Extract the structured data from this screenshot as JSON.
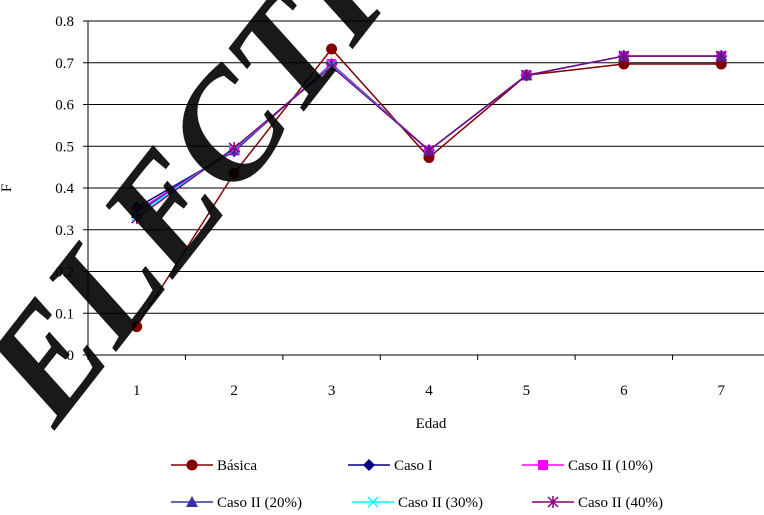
{
  "chart_data": {
    "type": "line",
    "title": "",
    "xlabel": "Edad",
    "ylabel": "F",
    "categories": [
      "1",
      "2",
      "3",
      "4",
      "5",
      "6",
      "7"
    ],
    "ylim": [
      0,
      0.8
    ],
    "yticks": [
      "0",
      "0.1",
      "0.2",
      "0.3",
      "0.4",
      "0.5",
      "0.6",
      "0.7",
      "0.8"
    ],
    "grid": true,
    "legend_position": "bottom",
    "series": [
      {
        "name": "Básica",
        "color": "#800000",
        "marker": "circle",
        "values": [
          0.068,
          0.435,
          0.733,
          0.473,
          0.67,
          0.697,
          0.697
        ]
      },
      {
        "name": "Caso I",
        "color": "#000080",
        "marker": "diamond",
        "values": [
          0.353,
          0.488,
          0.697,
          0.49,
          0.67,
          0.716,
          0.716
        ]
      },
      {
        "name": "Caso II (10%)",
        "color": "#FF00FF",
        "marker": "square",
        "values": [
          0.345,
          0.49,
          0.697,
          0.49,
          0.67,
          0.716,
          0.716
        ]
      },
      {
        "name": "Caso II (20%)",
        "color": "#3333A0",
        "marker": "triangle",
        "values": [
          0.34,
          0.492,
          0.695,
          0.49,
          0.67,
          0.716,
          0.716
        ]
      },
      {
        "name": "Caso II (30%)",
        "color": "#00FFFF",
        "marker": "x",
        "values": [
          0.335,
          0.494,
          0.693,
          0.49,
          0.67,
          0.716,
          0.716
        ]
      },
      {
        "name": "Caso II (40%)",
        "color": "#800080",
        "marker": "star",
        "values": [
          0.328,
          0.496,
          0.691,
          0.49,
          0.67,
          0.716,
          0.716
        ]
      }
    ]
  },
  "watermark": {
    "text": "ELECTRÓNICO",
    "color": "#000000"
  }
}
